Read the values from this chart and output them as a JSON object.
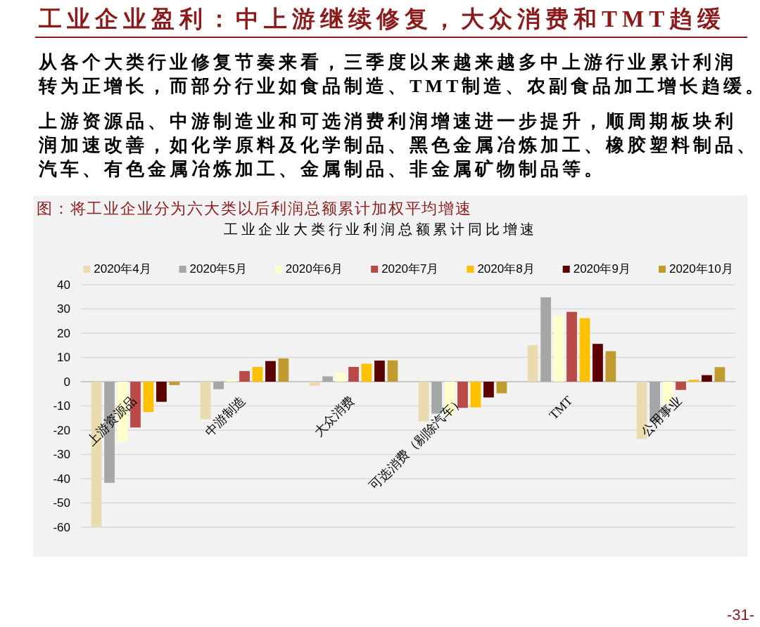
{
  "chart_data": {
    "type": "bar",
    "title": "工业企业盈利：中上游继续修复，大众消费和TMT趋缓",
    "subtitle": "工业企业大类行业利润总额累计同比增速",
    "annotations": [
      "从各个大类行业修复节奏来看，三季度以来越来越多中上游行业累计利润转为正增长，而部分行业如食品制造、TMT制造、农副食品加工增长趋缓。",
      "上游资源品、中游制造业和可选消费利润增速进一步提升，顺周期板块利润加速改善，如化学原料及化学制品、黑色金属冶炼加工、橡胶塑料制品、汽车、有色金属冶炼加工、金属制品、非金属矿物制品等。",
      "图：将工业企业分为六大类以后利润总额累计加权平均增速",
      "-31-"
    ],
    "categories": [
      "上游资源品",
      "中游制造",
      "大众消费",
      "可选消费（剔除汽车）",
      "TMT",
      "公用事业"
    ],
    "series": [
      {
        "name": "2020年4月",
        "color": "#eadcae",
        "values": [
          -60,
          -15.5,
          -1.7,
          -16.3,
          15,
          -23.6
        ]
      },
      {
        "name": "2020年5月",
        "color": "#a6a6a6",
        "values": [
          -41.7,
          -3.1,
          2.2,
          -13.2,
          34.8,
          -16.6
        ]
      },
      {
        "name": "2020年6月",
        "color": "#ffffcc",
        "values": [
          -25.1,
          0.9,
          3.7,
          -13.9,
          27.1,
          -8.9
        ]
      },
      {
        "name": "2020年7月",
        "color": "#b94a48",
        "values": [
          -18.9,
          4.4,
          6.1,
          -10.8,
          28.8,
          -3.4
        ]
      },
      {
        "name": "2020年8月",
        "color": "#ffc000",
        "values": [
          -12.5,
          6.1,
          7.4,
          -10.6,
          26.2,
          0.8
        ]
      },
      {
        "name": "2020年9月",
        "color": "#5c0000",
        "values": [
          -8.3,
          8.5,
          8.7,
          -6.5,
          15.6,
          2.7
        ]
      },
      {
        "name": "2020年10月",
        "color": "#bf9b30",
        "values": [
          -1.4,
          9.6,
          8.8,
          -4.8,
          12.6,
          6
        ]
      }
    ],
    "ylim": [
      -60,
      40
    ],
    "yticks": [
      -60,
      -50,
      -40,
      -30,
      -20,
      -10,
      0,
      10,
      20,
      30,
      40
    ],
    "grid": "y",
    "legend": "top"
  }
}
